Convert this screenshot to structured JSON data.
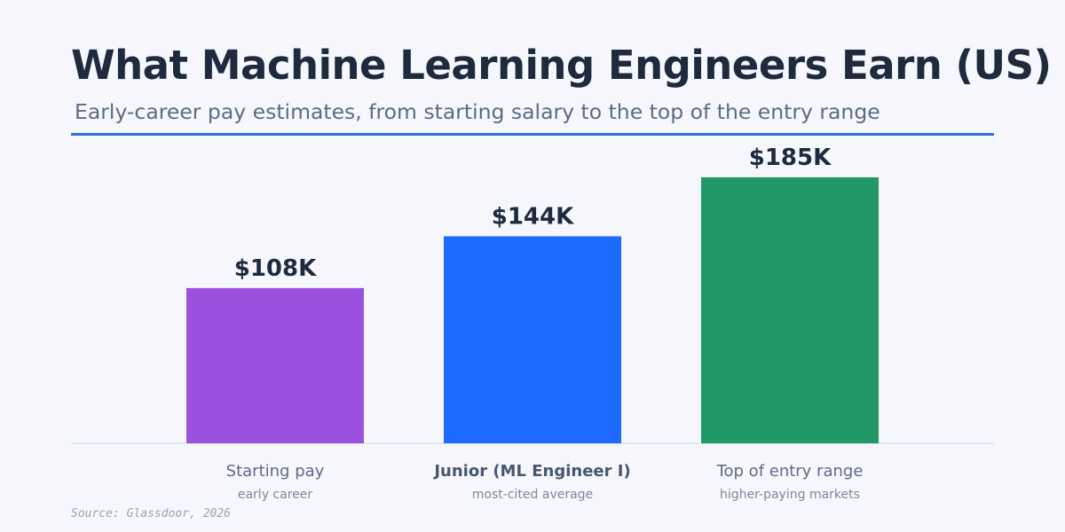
{
  "header": {
    "title": "What Machine Learning Engineers Earn (US)",
    "subtitle": "Early-career pay estimates, from starting salary to the top of the entry range"
  },
  "chart_data": {
    "type": "bar",
    "title": "What Machine Learning Engineers Earn (US)",
    "subtitle": "Early-career pay estimates, from starting salary to the top of the entry range",
    "categories": [
      "Starting pay",
      "Junior (ML Engineer I)",
      "Top of entry range"
    ],
    "category_sublabels": [
      "early career",
      "most-cited average",
      "higher-paying markets"
    ],
    "values": [
      108,
      144,
      185
    ],
    "value_labels": [
      "$108K",
      "$144K",
      "$185K"
    ],
    "unit": "thousand USD",
    "ylim": [
      0,
      185
    ],
    "grid": false,
    "legend": "none",
    "highlighted_category": "Junior (ML Engineer I)",
    "colors": [
      "#9b51e0",
      "#1f6bff",
      "#219966"
    ]
  },
  "footer": {
    "source": "Source: Glassdoor, 2026"
  }
}
